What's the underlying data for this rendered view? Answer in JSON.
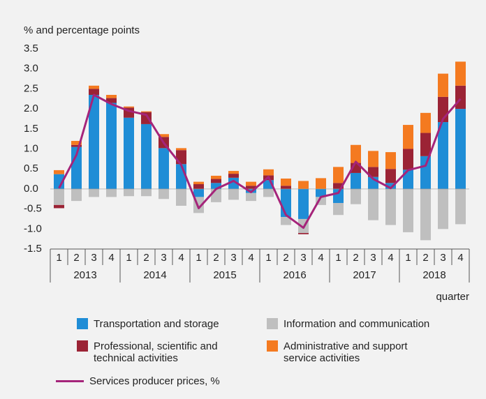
{
  "chart_data": {
    "type": "bar",
    "stacked": true,
    "ylabel": "% and percentage points",
    "xlabel": "quarter",
    "categories": [
      "1",
      "2",
      "3",
      "4",
      "1",
      "2",
      "3",
      "4",
      "1",
      "2",
      "3",
      "4",
      "1",
      "2",
      "3",
      "4",
      "1",
      "2",
      "3",
      "4",
      "1",
      "2",
      "3",
      "4"
    ],
    "years": [
      "2013",
      "2014",
      "2015",
      "2016",
      "2017",
      "2018"
    ],
    "ylim": [
      -1.5,
      3.5
    ],
    "yticks": [
      3.5,
      {
        "value": 3,
        "label": "3.0"
      },
      2.5,
      {
        "value": 2,
        "label": "2.0"
      },
      1.5,
      {
        "value": 1,
        "label": "1.0"
      },
      0.5,
      {
        "value": 0,
        "label": "0.0"
      },
      -0.5,
      {
        "value": -1,
        "label": "-1.0"
      },
      -1.5
    ],
    "series": [
      {
        "name": "Transportation and storage",
        "color": "#1f8dd6",
        "type": "bar",
        "values": [
          0.37,
          1.05,
          2.35,
          2.15,
          1.78,
          1.62,
          1.02,
          0.62,
          -0.2,
          0.15,
          0.28,
          -0.1,
          0.22,
          -0.7,
          -0.75,
          -0.2,
          -0.35,
          0.4,
          0.3,
          0.15,
          0.48,
          0.82,
          1.67,
          2.0
        ]
      },
      {
        "name": "Information and communication",
        "color": "#bfbfbf",
        "type": "bar",
        "values": [
          -0.4,
          -0.3,
          -0.2,
          -0.2,
          -0.18,
          -0.18,
          -0.25,
          -0.42,
          -0.4,
          -0.33,
          -0.27,
          -0.2,
          -0.2,
          -0.2,
          -0.35,
          -0.2,
          -0.3,
          -0.38,
          -0.78,
          -0.9,
          -1.08,
          -1.28,
          -1.0,
          -0.88
        ]
      },
      {
        "name": "Professional, scientific and technical activities",
        "color": "#9b2335",
        "type": "bar",
        "values": [
          -0.08,
          0.05,
          0.15,
          0.12,
          0.25,
          0.3,
          0.28,
          0.35,
          0.12,
          0.1,
          0.1,
          0.08,
          0.12,
          0.08,
          -0.03,
          0.0,
          0.15,
          0.25,
          0.25,
          0.35,
          0.52,
          0.58,
          0.63,
          0.58
        ]
      },
      {
        "name": "Administrative and support service activities",
        "color": "#f47a20",
        "type": "bar",
        "values": [
          0.1,
          0.1,
          0.08,
          0.08,
          0.03,
          0.02,
          0.07,
          0.05,
          0.06,
          0.08,
          0.07,
          0.1,
          0.15,
          0.18,
          0.2,
          0.27,
          0.4,
          0.45,
          0.4,
          0.42,
          0.6,
          0.5,
          0.58,
          0.6
        ]
      },
      {
        "name": "Services producer prices, %",
        "color": "#a5247a",
        "type": "line",
        "values": [
          0.02,
          0.85,
          2.35,
          2.12,
          1.95,
          1.85,
          1.15,
          0.6,
          -0.48,
          0.0,
          0.2,
          -0.08,
          0.3,
          -0.65,
          -0.97,
          -0.2,
          -0.1,
          0.68,
          0.25,
          0.02,
          0.47,
          0.58,
          1.75,
          2.25
        ]
      }
    ]
  }
}
